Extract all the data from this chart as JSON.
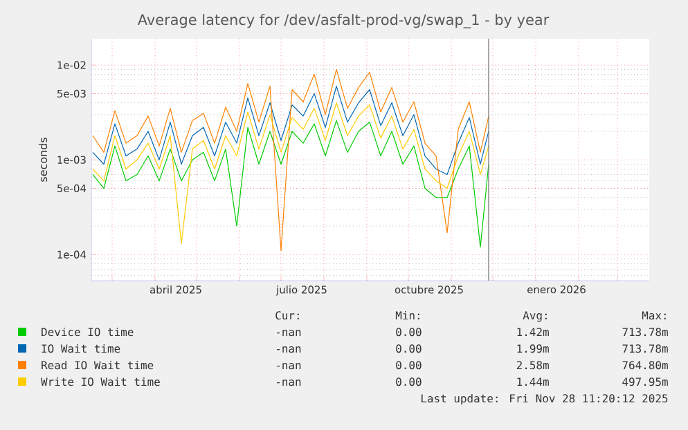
{
  "chart_data": {
    "type": "line",
    "title": "Average latency for /dev/asfalt-prod-vg/swap_1 - by year",
    "ylabel": "seconds",
    "log": "y",
    "grid": true,
    "legend": "bottom",
    "xlim": [
      "2025-02-14",
      "2026-03-24"
    ],
    "ylim": [
      5.3e-05,
      0.019
    ],
    "xticks": [
      {
        "value": "2025-03-01",
        "label": null
      },
      {
        "value": "2025-04-01",
        "label": null
      },
      {
        "value": "2025-05-01",
        "label": null
      },
      {
        "value": "2025-06-01",
        "label": null
      },
      {
        "value": "2025-07-01",
        "label": null
      },
      {
        "value": "2025-08-01",
        "label": null
      },
      {
        "value": "2025-09-01",
        "label": null
      },
      {
        "value": "2025-10-01",
        "label": null
      },
      {
        "value": "2025-11-01",
        "label": null
      },
      {
        "value": "2025-12-01",
        "label": null
      },
      {
        "value": "2026-01-01",
        "label": null
      },
      {
        "value": "2026-02-01",
        "label": null
      },
      {
        "value": "2026-03-01",
        "label": null
      },
      {
        "value": "2025-04-16",
        "label": "abril 2025"
      },
      {
        "value": "2025-07-16",
        "label": "julio 2025"
      },
      {
        "value": "2025-10-16",
        "label": "octubre 2025"
      },
      {
        "value": "2026-01-16",
        "label": "enero 2026"
      }
    ],
    "yticks": [
      {
        "value": 0.01,
        "label": "1e-02"
      },
      {
        "value": 0.005,
        "label": "5e-03"
      },
      {
        "value": 0.001,
        "label": "1e-03"
      },
      {
        "value": 0.0005,
        "label": "5e-04"
      },
      {
        "value": 0.0001,
        "label": "1e-04"
      }
    ],
    "x": [
      "2025-02-15",
      "2025-02-23",
      "2025-03-03",
      "2025-03-11",
      "2025-03-19",
      "2025-03-27",
      "2025-04-04",
      "2025-04-12",
      "2025-04-20",
      "2025-04-28",
      "2025-05-06",
      "2025-05-14",
      "2025-05-22",
      "2025-05-30",
      "2025-06-07",
      "2025-06-15",
      "2025-06-23",
      "2025-07-01",
      "2025-07-09",
      "2025-07-17",
      "2025-07-25",
      "2025-08-02",
      "2025-08-10",
      "2025-08-18",
      "2025-08-26",
      "2025-09-03",
      "2025-09-11",
      "2025-09-19",
      "2025-09-27",
      "2025-10-05",
      "2025-10-13",
      "2025-10-21",
      "2025-10-29",
      "2025-11-06",
      "2025-11-14",
      "2025-11-22",
      "2025-11-28"
    ],
    "series": [
      {
        "name": "Device IO time",
        "color": "#00cc00",
        "values": [
          0.0007,
          0.0005,
          0.0014,
          0.0006,
          0.0007,
          0.0011,
          0.0006,
          0.0013,
          0.0006,
          0.001,
          0.0012,
          0.0006,
          0.0013,
          0.0002,
          0.0022,
          0.0009,
          0.002,
          0.0009,
          0.002,
          0.0015,
          0.0024,
          0.0011,
          0.0026,
          0.0012,
          0.002,
          0.0025,
          0.0011,
          0.002,
          0.0009,
          0.0014,
          0.0005,
          0.0004,
          0.0004,
          0.0008,
          0.0014,
          0.00012,
          0.0009
        ]
      },
      {
        "name": "IO Wait time",
        "color": "#0066b3",
        "values": [
          0.0012,
          0.0009,
          0.0024,
          0.0011,
          0.0013,
          0.002,
          0.001,
          0.0025,
          0.0009,
          0.0018,
          0.0022,
          0.0011,
          0.0025,
          0.0015,
          0.0045,
          0.0018,
          0.004,
          0.0016,
          0.0038,
          0.0029,
          0.005,
          0.0022,
          0.006,
          0.0025,
          0.004,
          0.0055,
          0.0023,
          0.004,
          0.0018,
          0.003,
          0.0011,
          0.0008,
          0.0007,
          0.0015,
          0.0028,
          0.0009,
          0.002
        ]
      },
      {
        "name": "Read IO Wait time",
        "color": "#ff8000",
        "values": [
          0.0018,
          0.0012,
          0.0033,
          0.0015,
          0.0018,
          0.0029,
          0.0014,
          0.0035,
          0.0012,
          0.0026,
          0.0031,
          0.0015,
          0.0036,
          0.002,
          0.0064,
          0.0025,
          0.006,
          0.00011,
          0.0055,
          0.0041,
          0.008,
          0.003,
          0.009,
          0.0035,
          0.0058,
          0.0084,
          0.0032,
          0.0058,
          0.0025,
          0.0041,
          0.0015,
          0.0011,
          0.00017,
          0.0021,
          0.0041,
          0.0012,
          0.0029
        ]
      },
      {
        "name": "Write IO Wait time",
        "color": "#ffcc00",
        "values": [
          0.0008,
          0.0006,
          0.0018,
          0.0008,
          0.001,
          0.0015,
          0.0008,
          0.0018,
          0.00013,
          0.0013,
          0.0016,
          0.0008,
          0.0018,
          0.0011,
          0.0032,
          0.0013,
          0.003,
          0.0012,
          0.0028,
          0.0021,
          0.0035,
          0.0016,
          0.004,
          0.0018,
          0.0029,
          0.0038,
          0.0017,
          0.0029,
          0.0013,
          0.0021,
          0.0008,
          0.0006,
          0.0005,
          0.0011,
          0.002,
          0.0007,
          0.0014
        ]
      }
    ],
    "ref_lines": [
      {
        "axis": "x",
        "value": "2025-11-28",
        "color": "#808080"
      }
    ],
    "annotations": [
      "Cur:",
      "Min:",
      "Avg:",
      "Max:",
      "-nan",
      "0.00",
      "1.42m",
      "713.78m",
      "-nan",
      "0.00",
      "1.99m",
      "713.78m",
      "-nan",
      "0.00",
      "2.58m",
      "764.80m",
      "-nan",
      "0.00",
      "1.44m",
      "497.95m",
      "Last update: Fri Nov 28 11:20:12 2025"
    ]
  }
}
